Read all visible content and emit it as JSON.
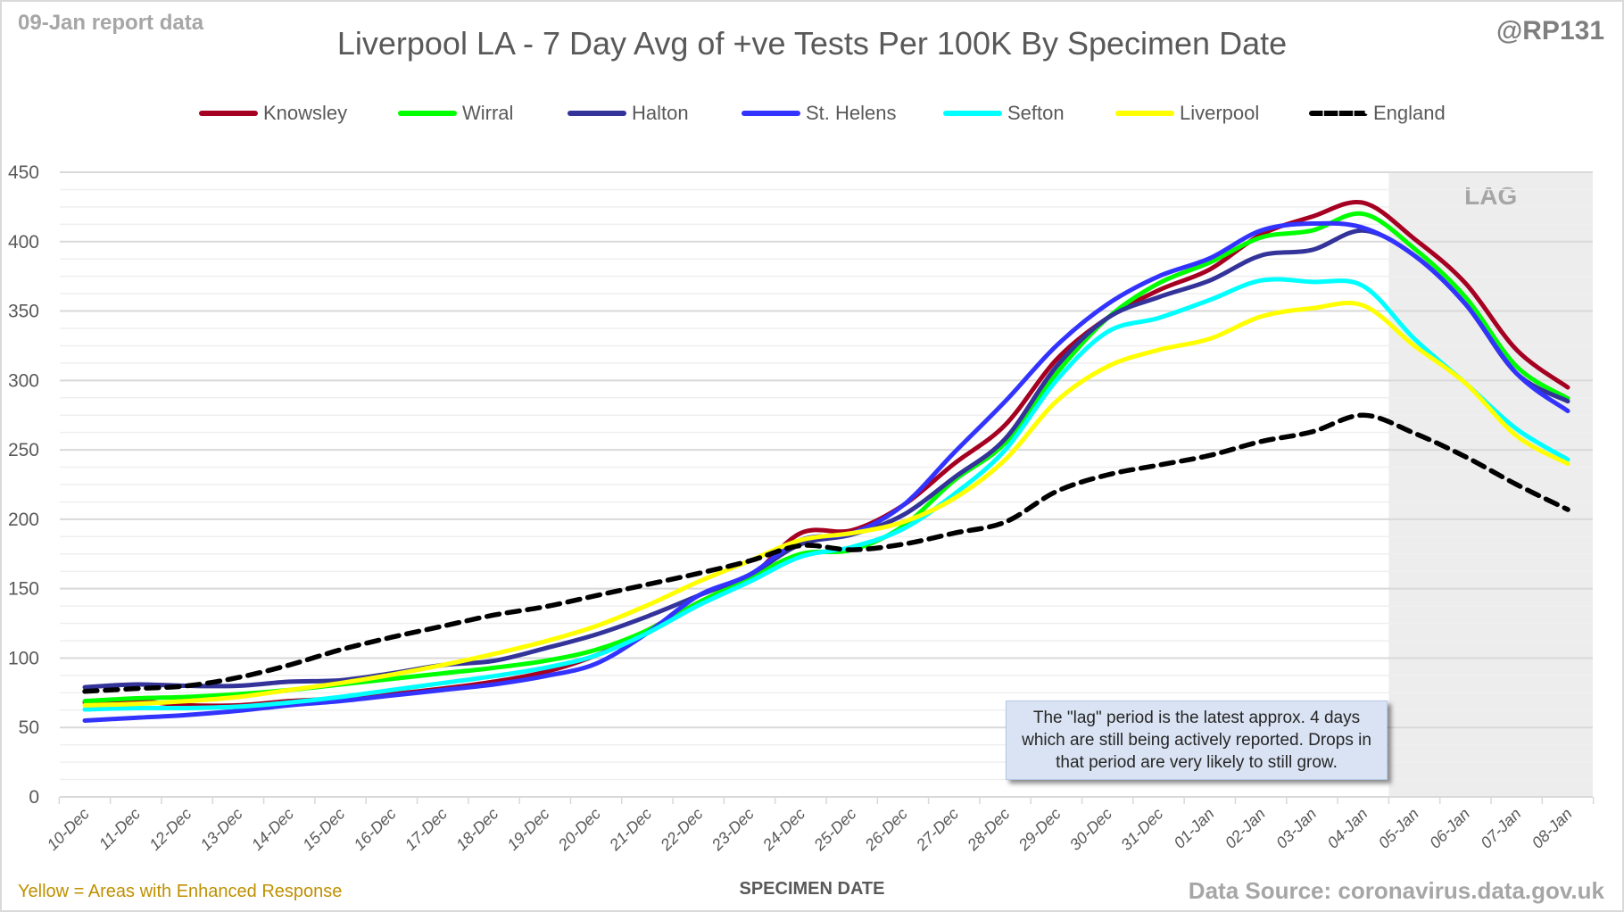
{
  "header": {
    "report_date": "09-Jan report data",
    "title": "Liverpool LA - 7 Day Avg of +ve Tests Per 100K By Specimen Date",
    "handle": "@RP131"
  },
  "footer": {
    "enhanced_note": "Yellow = Areas with Enhanced Response",
    "data_source": "Data Source: coronavirus.data.gov.uk"
  },
  "annotation": {
    "lag_label": "LAG",
    "note": "The \"lag\" period is the latest approx. 4 days which are still being actively reported. Drops in that period are very likely to still grow."
  },
  "chart_data": {
    "type": "line",
    "title": "Liverpool LA - 7 Day Avg of +ve Tests Per 100K By Specimen Date",
    "xlabel": "SPECIMEN DATE",
    "ylabel": "",
    "ylim": [
      0,
      450
    ],
    "yticks": [
      0,
      50,
      100,
      150,
      200,
      250,
      300,
      350,
      400,
      450
    ],
    "minor_grid_step": 12.5,
    "grid": true,
    "legend_position": "top",
    "lag_start_category": "05-Jan",
    "categories": [
      "10-Dec",
      "11-Dec",
      "12-Dec",
      "13-Dec",
      "14-Dec",
      "15-Dec",
      "16-Dec",
      "17-Dec",
      "18-Dec",
      "19-Dec",
      "20-Dec",
      "21-Dec",
      "22-Dec",
      "23-Dec",
      "24-Dec",
      "25-Dec",
      "26-Dec",
      "27-Dec",
      "28-Dec",
      "29-Dec",
      "30-Dec",
      "31-Dec",
      "01-Jan",
      "02-Jan",
      "03-Jan",
      "04-Jan",
      "05-Jan",
      "06-Jan",
      "07-Jan",
      "08-Jan"
    ],
    "series": [
      {
        "name": "Knowsley",
        "color": "#a50021",
        "dashed": false,
        "values": [
          68,
          69,
          66,
          66,
          69,
          71,
          74,
          78,
          83,
          90,
          102,
          120,
          140,
          158,
          190,
          192,
          210,
          240,
          268,
          315,
          345,
          365,
          380,
          405,
          418,
          428,
          402,
          370,
          322,
          295
        ]
      },
      {
        "name": "Wirral",
        "color": "#00ff00",
        "dashed": false,
        "values": [
          69,
          71,
          72,
          74,
          77,
          81,
          85,
          89,
          93,
          98,
          106,
          120,
          140,
          158,
          175,
          178,
          195,
          228,
          255,
          305,
          345,
          370,
          385,
          403,
          408,
          420,
          395,
          360,
          310,
          287
        ]
      },
      {
        "name": "Halton",
        "color": "#333399",
        "dashed": false,
        "values": [
          79,
          81,
          80,
          80,
          83,
          84,
          89,
          95,
          98,
          107,
          117,
          130,
          145,
          160,
          182,
          189,
          203,
          230,
          258,
          310,
          345,
          360,
          372,
          390,
          394,
          408,
          390,
          355,
          305,
          285
        ]
      },
      {
        "name": "St. Helens",
        "color": "#3333ff",
        "dashed": false,
        "values": [
          55,
          57,
          59,
          62,
          66,
          69,
          73,
          77,
          81,
          87,
          96,
          118,
          145,
          160,
          185,
          190,
          210,
          248,
          285,
          325,
          355,
          375,
          388,
          408,
          413,
          410,
          390,
          355,
          305,
          278
        ]
      },
      {
        "name": "Sefton",
        "color": "#00ffff",
        "dashed": false,
        "values": [
          63,
          64,
          64,
          65,
          68,
          72,
          77,
          82,
          87,
          93,
          102,
          118,
          138,
          155,
          173,
          180,
          193,
          218,
          250,
          300,
          335,
          345,
          358,
          372,
          371,
          368,
          330,
          298,
          265,
          243
        ]
      },
      {
        "name": "Liverpool",
        "color": "#ffff00",
        "dashed": false,
        "values": [
          66,
          67,
          69,
          72,
          77,
          82,
          88,
          95,
          103,
          112,
          123,
          138,
          155,
          170,
          185,
          190,
          198,
          215,
          243,
          285,
          310,
          322,
          330,
          346,
          352,
          354,
          325,
          298,
          260,
          240
        ]
      },
      {
        "name": "England",
        "color": "#000000",
        "dashed": true,
        "values": [
          76,
          78,
          80,
          86,
          95,
          106,
          115,
          123,
          131,
          137,
          145,
          153,
          161,
          170,
          181,
          178,
          182,
          190,
          198,
          220,
          232,
          239,
          246,
          256,
          263,
          275,
          262,
          245,
          225,
          207
        ]
      }
    ]
  }
}
